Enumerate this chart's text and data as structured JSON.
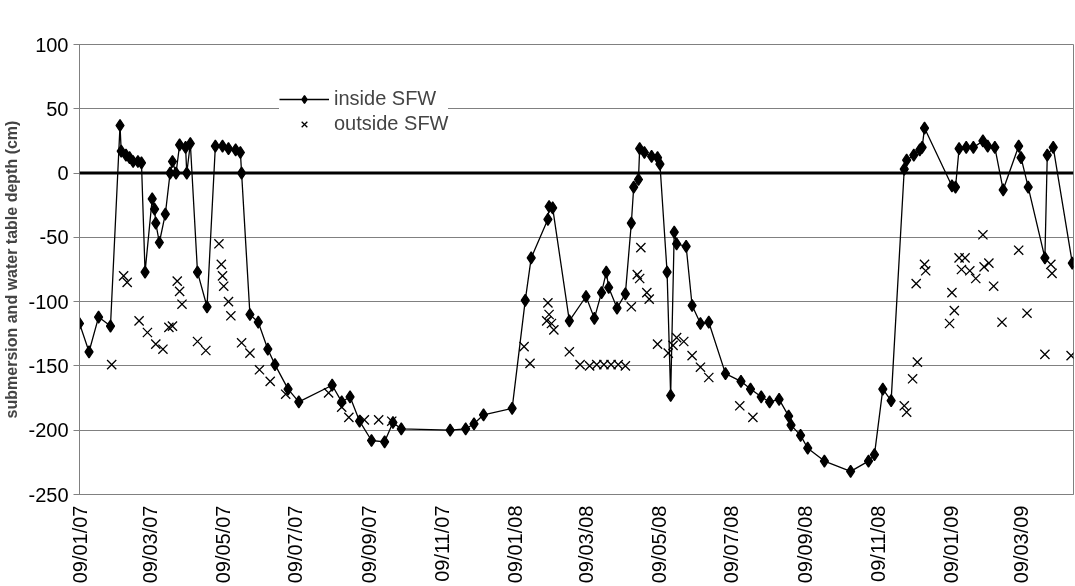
{
  "chart_data": {
    "type": "line",
    "ylabel": "submersion and water table depth (cm)",
    "xlim": [
      "2007-01-09",
      "2009-04-22"
    ],
    "xticks": [
      {
        "value": "2007-01-09",
        "label": "09/01/07"
      },
      {
        "value": "2007-03-09",
        "label": "09/03/07"
      },
      {
        "value": "2007-05-09",
        "label": "09/05/07"
      },
      {
        "value": "2007-07-09",
        "label": "09/07/07"
      },
      {
        "value": "2007-09-09",
        "label": "09/09/07"
      },
      {
        "value": "2007-11-09",
        "label": "09/11/07"
      },
      {
        "value": "2008-01-09",
        "label": "09/01/08"
      },
      {
        "value": "2008-03-09",
        "label": "09/03/08"
      },
      {
        "value": "2008-05-09",
        "label": "09/05/08"
      },
      {
        "value": "2008-07-09",
        "label": "09/07/08"
      },
      {
        "value": "2008-09-09",
        "label": "09/09/08"
      },
      {
        "value": "2008-11-09",
        "label": "09/11/08"
      },
      {
        "value": "2009-01-09",
        "label": "09/01/09"
      },
      {
        "value": "2009-03-09",
        "label": "09/03/09"
      }
    ],
    "ylim": [
      -250,
      100
    ],
    "yticks": [
      -250,
      -200,
      -150,
      -100,
      -50,
      0,
      50,
      100
    ],
    "grid": "y",
    "legend": "top",
    "ref_lines": [
      {
        "axis": "y",
        "value": 0,
        "color": "#000000"
      }
    ],
    "series": [
      {
        "name": "inside SFW",
        "marker": "diamond",
        "line_style": "solid",
        "color": "#000000",
        "x": [
          "2007-01-09",
          "2007-01-17",
          "2007-01-25",
          "2007-02-04",
          "2007-02-12",
          "2007-02-13",
          "2007-02-17",
          "2007-02-20",
          "2007-02-23",
          "2007-02-27",
          "2007-03-02",
          "2007-03-05",
          "2007-03-11",
          "2007-03-13",
          "2007-03-14",
          "2007-03-17",
          "2007-03-22",
          "2007-03-26",
          "2007-03-28",
          "2007-03-31",
          "2007-04-03",
          "2007-04-08",
          "2007-04-09",
          "2007-04-12",
          "2007-04-18",
          "2007-04-26",
          "2007-05-03",
          "2007-05-09",
          "2007-05-14",
          "2007-05-20",
          "2007-05-24",
          "2007-05-25",
          "2007-06-01",
          "2007-06-08",
          "2007-06-16",
          "2007-06-22",
          "2007-07-03",
          "2007-07-12",
          "2007-08-09",
          "2007-08-17",
          "2007-08-24",
          "2007-09-01",
          "2007-09-11",
          "2007-09-22",
          "2007-09-29",
          "2007-10-06",
          "2007-11-16",
          "2007-11-29",
          "2007-12-06",
          "2007-12-14",
          "2008-01-07",
          "2008-01-18",
          "2008-01-23",
          "2008-02-06",
          "2008-02-07",
          "2008-02-10",
          "2008-02-24",
          "2008-03-09",
          "2008-03-16",
          "2008-03-22",
          "2008-03-26",
          "2008-03-28",
          "2008-04-04",
          "2008-04-11",
          "2008-04-16",
          "2008-04-18",
          "2008-04-22",
          "2008-04-23",
          "2008-04-27",
          "2008-05-03",
          "2008-05-08",
          "2008-05-10",
          "2008-05-16",
          "2008-05-19",
          "2008-05-22",
          "2008-05-24",
          "2008-06-01",
          "2008-06-06",
          "2008-06-13",
          "2008-06-20",
          "2008-07-04",
          "2008-07-17",
          "2008-07-25",
          "2008-08-03",
          "2008-08-10",
          "2008-08-18",
          "2008-08-26",
          "2008-08-28",
          "2008-09-05",
          "2008-09-11",
          "2008-09-25",
          "2008-10-17",
          "2008-11-01",
          "2008-11-06",
          "2008-11-13",
          "2008-11-20",
          "2008-12-01",
          "2008-12-03",
          "2008-12-09",
          "2008-12-14",
          "2008-12-16",
          "2008-12-18",
          "2009-01-10",
          "2009-01-13",
          "2009-01-16",
          "2009-01-22",
          "2009-01-28",
          "2009-02-05",
          "2009-02-09",
          "2009-02-15",
          "2009-02-22",
          "2009-03-07",
          "2009-03-09",
          "2009-03-15",
          "2009-03-29",
          "2009-03-31",
          "2009-04-05",
          "2009-04-21"
        ],
        "values": [
          -117,
          -139,
          -112,
          -119,
          37,
          17,
          14,
          12,
          9,
          9,
          8,
          -77,
          -20,
          -28,
          -39,
          -54,
          -32,
          0,
          9,
          0,
          22,
          20,
          0,
          23,
          -77,
          -104,
          21,
          21,
          19,
          18,
          16,
          0,
          -110,
          -116,
          -137,
          -149,
          -168,
          -178,
          -165,
          -178,
          -174,
          -193,
          -208,
          -209,
          -194,
          -199,
          -200,
          -199,
          -195,
          -188,
          -183,
          -99,
          -66,
          -36,
          -26,
          -27,
          -115,
          -96,
          -113,
          -93,
          -77,
          -89,
          -105,
          -94,
          -39,
          -11,
          -5,
          19,
          16,
          13,
          12,
          7,
          -77,
          -173,
          -46,
          -55,
          -57,
          -103,
          -117,
          -116,
          -156,
          -162,
          -168,
          -174,
          -178,
          -176,
          -189,
          -196,
          -204,
          -214,
          -224,
          -232,
          -224,
          -219,
          -168,
          -177,
          3,
          10,
          14,
          18,
          20,
          35,
          -10,
          -11,
          19,
          20,
          20,
          25,
          21,
          20,
          -13,
          21,
          12,
          -11,
          -66,
          14,
          20,
          -70
        ]
      },
      {
        "name": "outside SFW",
        "type": "scatter",
        "marker": "cross",
        "color": "#000000",
        "x": [
          "2007-02-05",
          "2007-02-15",
          "2007-02-18",
          "2007-02-28",
          "2007-03-07",
          "2007-03-14",
          "2007-03-20",
          "2007-03-25",
          "2007-03-28",
          "2007-04-01",
          "2007-04-03",
          "2007-04-05",
          "2007-04-18",
          "2007-04-25",
          "2007-05-06",
          "2007-05-08",
          "2007-05-09",
          "2007-05-10",
          "2007-05-14",
          "2007-05-16",
          "2007-05-25",
          "2007-06-01",
          "2007-06-09",
          "2007-06-18",
          "2007-07-01",
          "2007-08-06",
          "2007-08-17",
          "2007-08-23",
          "2007-09-05",
          "2007-09-17",
          "2007-09-28",
          "2008-01-17",
          "2008-01-22",
          "2008-02-05",
          "2008-02-06",
          "2008-02-07",
          "2008-02-09",
          "2008-02-11",
          "2008-02-24",
          "2008-03-04",
          "2008-03-12",
          "2008-03-18",
          "2008-03-24",
          "2008-03-30",
          "2008-04-05",
          "2008-04-11",
          "2008-04-16",
          "2008-04-21",
          "2008-04-23",
          "2008-04-24",
          "2008-04-29",
          "2008-05-01",
          "2008-05-08",
          "2008-05-17",
          "2008-05-21",
          "2008-05-24",
          "2008-05-30",
          "2008-06-06",
          "2008-06-13",
          "2008-06-20",
          "2008-07-16",
          "2008-07-27",
          "2008-12-01",
          "2008-12-03",
          "2008-12-08",
          "2008-12-11",
          "2008-12-12",
          "2008-12-18",
          "2008-12-19",
          "2009-01-08",
          "2009-01-10",
          "2009-01-12",
          "2009-01-16",
          "2009-01-18",
          "2009-01-21",
          "2009-01-25",
          "2009-01-30",
          "2009-02-05",
          "2009-02-06",
          "2009-02-10",
          "2009-02-14",
          "2009-02-21",
          "2009-03-07",
          "2009-03-14",
          "2009-03-29",
          "2009-04-03",
          "2009-04-04",
          "2009-04-20"
        ],
        "values": [
          -149,
          -80,
          -85,
          -115,
          -124,
          -133,
          -137,
          -120,
          -119,
          -84,
          -92,
          -102,
          -131,
          -138,
          -55,
          -71,
          -80,
          -88,
          -100,
          -111,
          -132,
          -140,
          -153,
          -162,
          -172,
          -171,
          -182,
          -190,
          -192,
          -192,
          -193,
          -135,
          -148,
          -115,
          -101,
          -110,
          -117,
          -122,
          -139,
          -149,
          -150,
          -149,
          -149,
          -149,
          -149,
          -150,
          -104,
          -79,
          -82,
          -58,
          -93,
          -98,
          -133,
          -140,
          -134,
          -128,
          -131,
          -142,
          -151,
          -159,
          -181,
          -190,
          -181,
          -186,
          -160,
          -86,
          -147,
          -71,
          -76,
          -117,
          -93,
          -107,
          -66,
          -75,
          -66,
          -76,
          -82,
          -48,
          -73,
          -70,
          -88,
          -116,
          -60,
          -109,
          -141,
          -71,
          -78,
          -142
        ]
      }
    ]
  }
}
